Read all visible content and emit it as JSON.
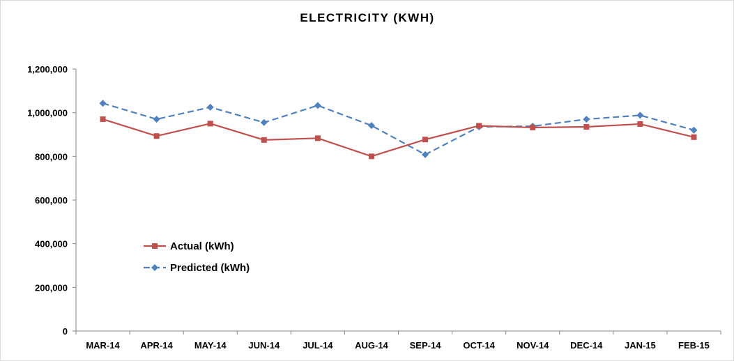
{
  "chart_data": {
    "type": "line",
    "title": "ELECTRICITY (KWH)",
    "xlabel": "",
    "ylabel": "",
    "categories": [
      "MAR-14",
      "APR-14",
      "MAY-14",
      "JUN-14",
      "JUL-14",
      "AUG-14",
      "SEP-14",
      "OCT-14",
      "NOV-14",
      "DEC-14",
      "JAN-15",
      "FEB-15"
    ],
    "ylim": [
      0,
      1200000
    ],
    "yticks": [
      0,
      200000,
      400000,
      600000,
      800000,
      1000000,
      1200000
    ],
    "ytick_labels": [
      "0",
      "200,000",
      "400,000",
      "600,000",
      "800,000",
      "1,000,000",
      "1,200,000"
    ],
    "grid": false,
    "legend_position": "left-inside",
    "series": [
      {
        "name": "Actual (kWh)",
        "color": "#c0504d",
        "marker": "square",
        "line_style": "solid",
        "values": [
          970000,
          893000,
          950000,
          875000,
          883000,
          800000,
          877000,
          940000,
          932000,
          935000,
          948000,
          888000
        ]
      },
      {
        "name": "Predicted (kWh)",
        "color": "#4f81bd",
        "marker": "diamond",
        "line_style": "dashed",
        "values": [
          1043000,
          970000,
          1025000,
          955000,
          1033000,
          941000,
          808000,
          935000,
          938000,
          970000,
          988000,
          920000
        ]
      }
    ]
  }
}
